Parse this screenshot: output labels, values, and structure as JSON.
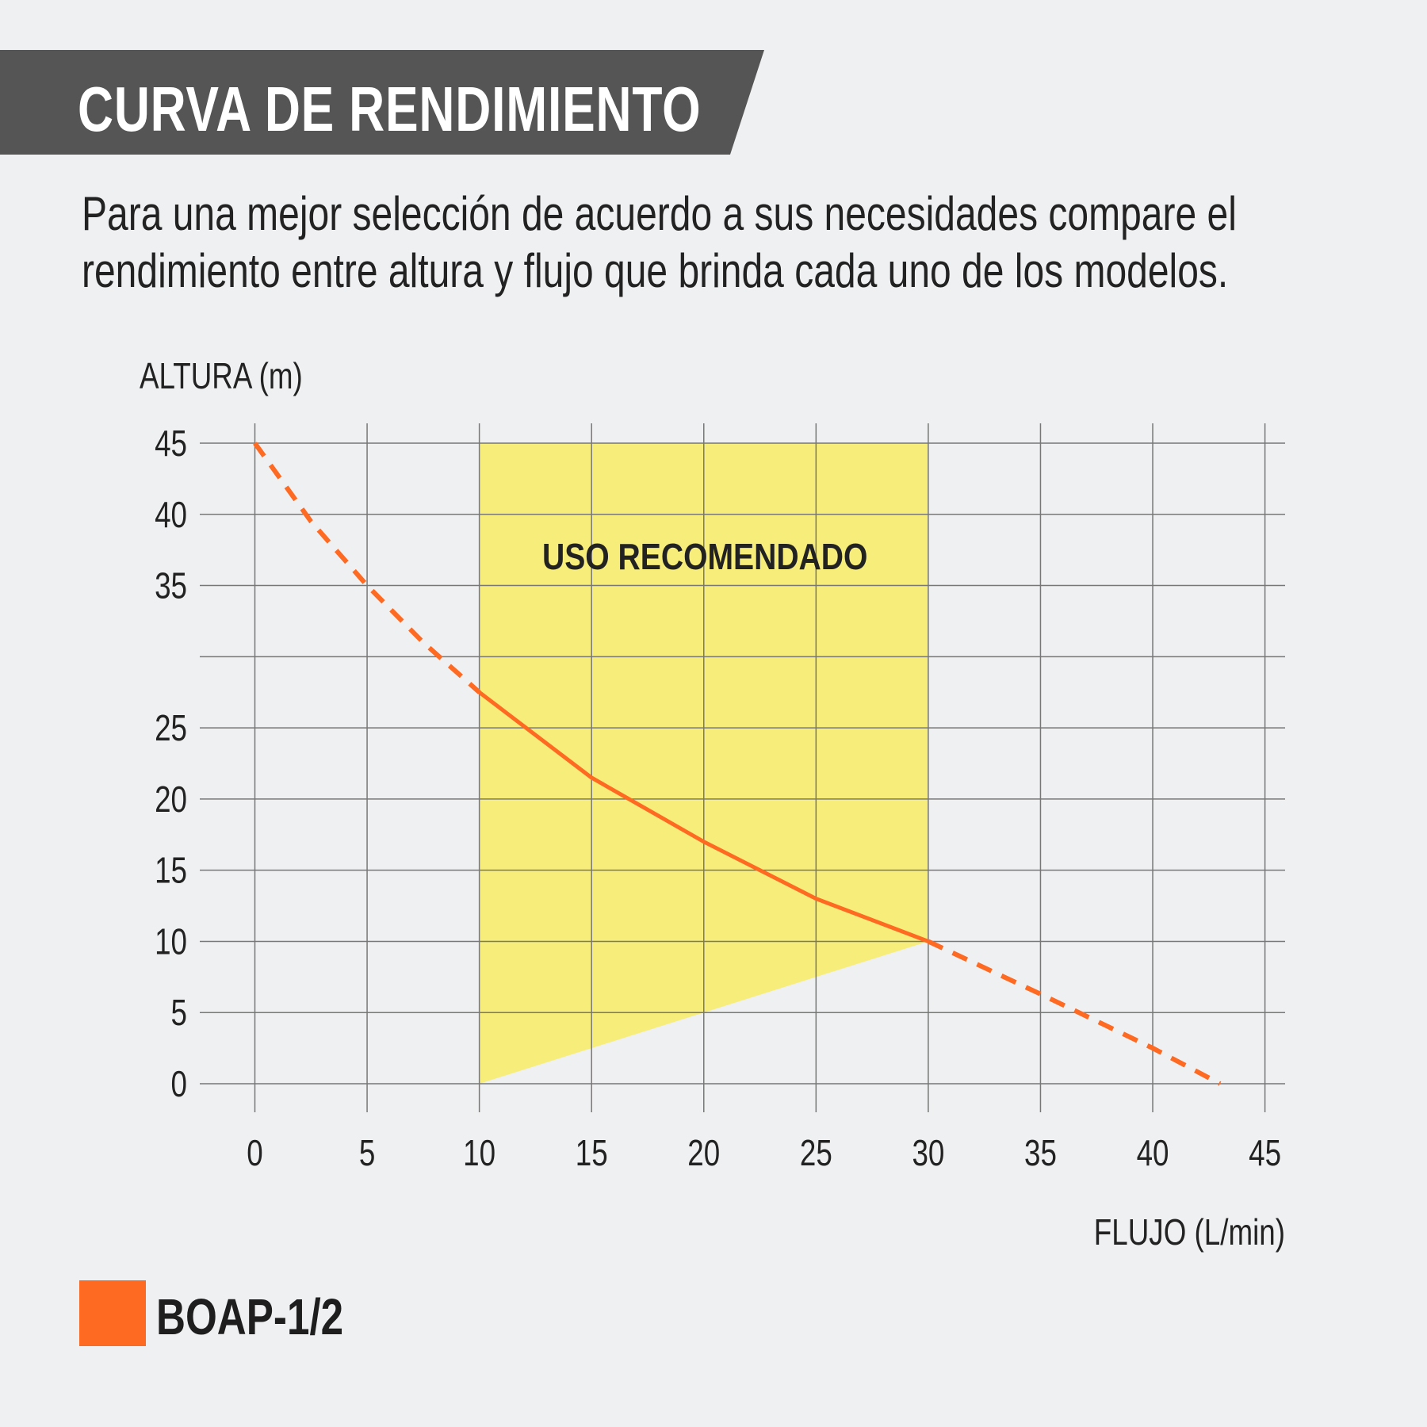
{
  "header": {
    "title": "CURVA DE RENDIMIENTO"
  },
  "description": {
    "line1": "Para una mejor selección de acuerdo a sus necesidades compare el",
    "line2": "rendimiento entre altura y flujo que brinda cada uno de los modelos."
  },
  "colors": {
    "banner": "#555555",
    "series": "#ff6a22",
    "zone": "#f7ed7a",
    "grid": "#777777",
    "background": "#eff0f2"
  },
  "chart_data": {
    "type": "line",
    "title": "",
    "xlabel": "FLUJO (L/min)",
    "ylabel": "ALTURA (m)",
    "xlim": [
      0,
      45
    ],
    "ylim": [
      0,
      45
    ],
    "grid": true,
    "x_ticks": [
      0,
      5,
      10,
      15,
      20,
      25,
      30,
      35,
      40,
      45
    ],
    "x_tick_labels": [
      "0",
      "5",
      "10",
      "15",
      "20",
      "25",
      "30",
      "35",
      "40",
      "45"
    ],
    "y_ticks": [
      0,
      5,
      10,
      15,
      20,
      25,
      30,
      35,
      40,
      45
    ],
    "y_tick_labels": [
      "0",
      "5",
      "10",
      "15",
      "20",
      "25",
      "",
      "35",
      "40",
      "45"
    ],
    "region": {
      "label": "USO RECOMENDADO",
      "polygon": [
        [
          10,
          0
        ],
        [
          10,
          45
        ],
        [
          30,
          45
        ],
        [
          30,
          10
        ]
      ]
    },
    "series": [
      {
        "name": "BOAP-1/2",
        "x": [
          0,
          2.5,
          5,
          7.5,
          10,
          15,
          20,
          25,
          30,
          35,
          40,
          43
        ],
        "y": [
          45,
          39.5,
          35,
          31,
          27.5,
          21.5,
          17,
          13,
          10,
          6.3,
          2.5,
          0
        ],
        "recommended_range": [
          10,
          30
        ],
        "style_outside_range": "dashed"
      }
    ],
    "legend": {
      "placement": "bottom-left",
      "entries": [
        "BOAP-1/2"
      ]
    }
  }
}
